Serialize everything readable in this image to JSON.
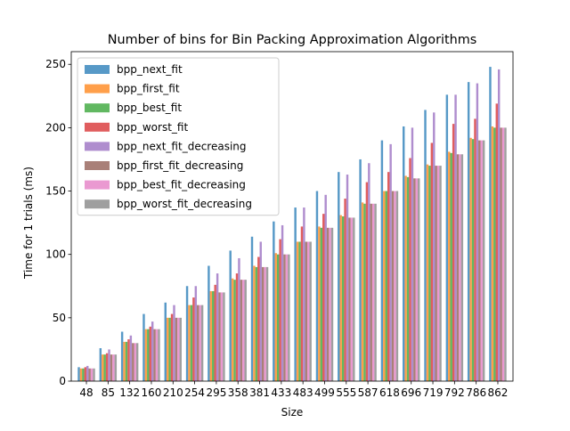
{
  "chart_data": {
    "type": "bar",
    "title": "Number of bins for Bin Packing Approximation Algorithms",
    "xlabel": "Size",
    "ylabel": "Time for 1 trials (ms)",
    "ylim": [
      0,
      260
    ],
    "yticks": [
      0,
      50,
      100,
      150,
      200,
      250
    ],
    "grid": false,
    "legend_position": "top-left",
    "categories": [
      "48",
      "85",
      "132",
      "160",
      "210",
      "254",
      "295",
      "358",
      "381",
      "433",
      "483",
      "499",
      "555",
      "587",
      "618",
      "696",
      "719",
      "792",
      "786",
      "862"
    ],
    "series": [
      {
        "name": "bpp_next_fit",
        "color": "#1f77b4",
        "values": [
          11,
          26,
          39,
          53,
          62,
          75,
          91,
          103,
          114,
          126,
          137,
          150,
          165,
          175,
          190,
          201,
          214,
          226,
          236,
          248
        ]
      },
      {
        "name": "bpp_first_fit",
        "color": "#ff7f0e",
        "values": [
          10,
          21,
          31,
          41,
          50,
          60,
          71,
          81,
          91,
          101,
          110,
          122,
          131,
          141,
          150,
          162,
          171,
          181,
          192,
          201
        ]
      },
      {
        "name": "bpp_best_fit",
        "color": "#2ca02c",
        "values": [
          10,
          21,
          31,
          41,
          50,
          60,
          71,
          80,
          90,
          100,
          110,
          121,
          130,
          140,
          150,
          161,
          170,
          180,
          191,
          200
        ]
      },
      {
        "name": "bpp_worst_fit",
        "color": "#d62728",
        "values": [
          11,
          22,
          33,
          43,
          53,
          66,
          76,
          85,
          98,
          112,
          122,
          132,
          144,
          157,
          165,
          176,
          188,
          203,
          207,
          219
        ]
      },
      {
        "name": "bpp_next_fit_decreasing",
        "color": "#9467bd",
        "values": [
          12,
          25,
          36,
          47,
          60,
          75,
          85,
          97,
          110,
          123,
          137,
          147,
          163,
          172,
          187,
          200,
          212,
          226,
          235,
          246
        ]
      },
      {
        "name": "bpp_first_fit_decreasing",
        "color": "#8c564b",
        "values": [
          10,
          21,
          30,
          41,
          50,
          60,
          70,
          80,
          90,
          100,
          110,
          121,
          129,
          140,
          150,
          160,
          170,
          179,
          190,
          200
        ]
      },
      {
        "name": "bpp_best_fit_decreasing",
        "color": "#e377c2",
        "values": [
          10,
          21,
          30,
          41,
          50,
          60,
          70,
          80,
          90,
          100,
          110,
          121,
          129,
          140,
          150,
          160,
          170,
          179,
          190,
          200
        ]
      },
      {
        "name": "bpp_worst_fit_decreasing",
        "color": "#7f7f7f",
        "values": [
          10,
          21,
          30,
          41,
          50,
          60,
          70,
          80,
          90,
          100,
          110,
          121,
          129,
          140,
          150,
          160,
          170,
          179,
          190,
          200
        ]
      }
    ]
  }
}
